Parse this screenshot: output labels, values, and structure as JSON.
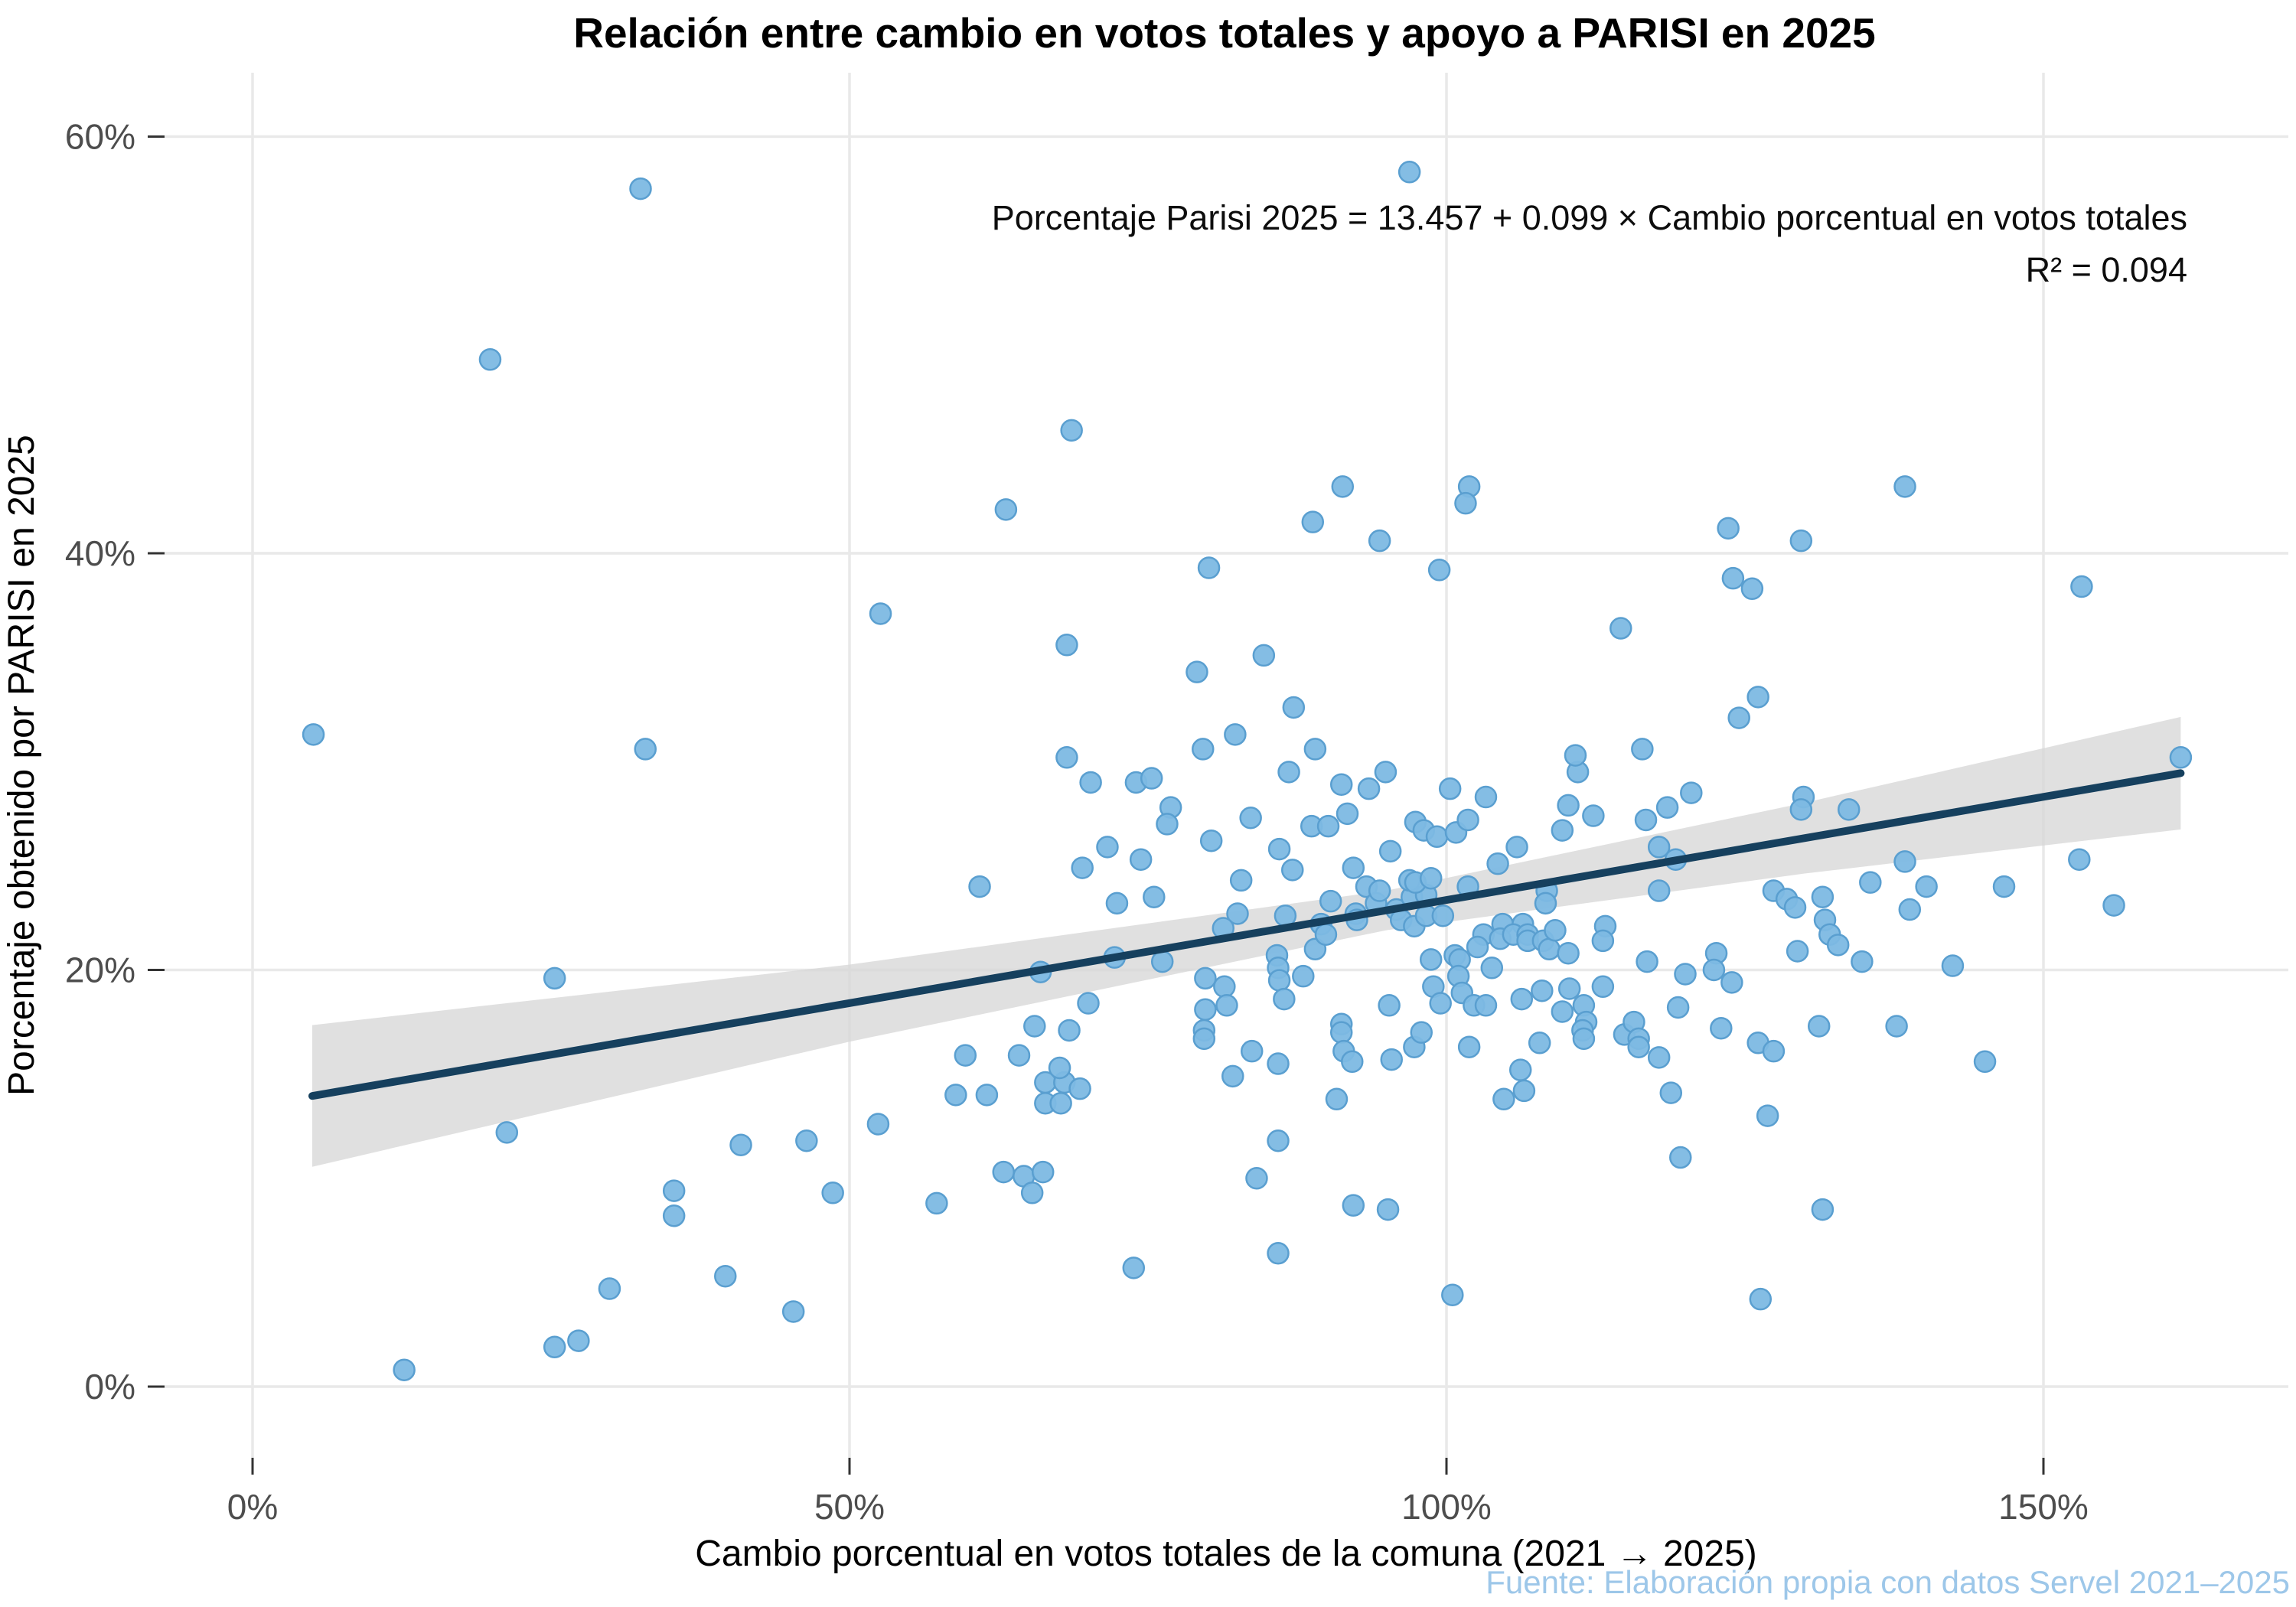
{
  "header": {
    "title": "Relación entre cambio en votos totales y apoyo a PARISI en 2025"
  },
  "annotation": {
    "line1": "Porcentaje Parisi 2025 = 13.457 + 0.099 × Cambio porcentual en votos totales",
    "line2": "R² = 0.094"
  },
  "footer": {
    "text": "Fuente: Elaboración propia con datos Servel 2021–2025"
  },
  "colors": {
    "point_fill": "#7db9e3",
    "point_stroke": "#5a9fd0",
    "regression_line": "#16405e",
    "confidence_band": "#d6d6d6",
    "gridline": "#e9e9e9",
    "tick_mark": "#333333",
    "tick_text": "#4d4d4d",
    "footer_text": "#9dc7e9"
  },
  "chart_data": {
    "type": "scatter",
    "title": "Relación entre cambio en votos totales y apoyo a PARISI en 2025",
    "xlabel": "Cambio porcentual en votos totales de la comuna (2021 → 2025)",
    "ylabel": "Porcentaje obtenido por PARISI en 2025",
    "x_ticks": [
      0,
      50,
      100,
      150
    ],
    "y_ticks": [
      0,
      20,
      40,
      60
    ],
    "x_tick_labels": [
      "0%",
      "50%",
      "100%",
      "150%"
    ],
    "y_tick_labels": [
      "0%",
      "20%",
      "40%",
      "60%"
    ],
    "xlim": [
      -7,
      170
    ],
    "ylim": [
      -3.5,
      63
    ],
    "grid": "on",
    "legend": "none",
    "regression": {
      "intercept": 13.457,
      "slope": 0.099,
      "r2": 0.094,
      "x_start": 5,
      "x_end": 161.5,
      "band_x": [
        5,
        50,
        95,
        130,
        161.5
      ],
      "band_halfwidth": [
        3.4,
        1.85,
        0.95,
        1.7,
        2.7
      ]
    },
    "points": [
      [
        5.1,
        31.3
      ],
      [
        32.5,
        57.5
      ],
      [
        19.9,
        49.3
      ],
      [
        32.9,
        30.6
      ],
      [
        25.3,
        19.6
      ],
      [
        21.3,
        12.2
      ],
      [
        35.3,
        9.4
      ],
      [
        35.3,
        8.2
      ],
      [
        29.9,
        4.7
      ],
      [
        25.3,
        1.9
      ],
      [
        27.3,
        2.2
      ],
      [
        12.7,
        0.8
      ],
      [
        39.6,
        5.3
      ],
      [
        45.3,
        3.6
      ],
      [
        40.9,
        11.6
      ],
      [
        46.4,
        11.8
      ],
      [
        48.6,
        9.3
      ],
      [
        52.4,
        12.6
      ],
      [
        57.3,
        8.8
      ],
      [
        52.6,
        37.1
      ],
      [
        58.9,
        14.0
      ],
      [
        61.5,
        14.0
      ],
      [
        59.7,
        15.9
      ],
      [
        64.2,
        15.9
      ],
      [
        60.9,
        24.0
      ],
      [
        62.9,
        10.3
      ],
      [
        64.6,
        10.1
      ],
      [
        66.2,
        10.3
      ],
      [
        65.3,
        9.3
      ],
      [
        65.5,
        17.3
      ],
      [
        66.0,
        19.9
      ],
      [
        66.4,
        14.6
      ],
      [
        66.4,
        13.6
      ],
      [
        67.7,
        13.6
      ],
      [
        68.0,
        14.6
      ],
      [
        68.4,
        17.1
      ],
      [
        67.6,
        15.3
      ],
      [
        69.3,
        14.3
      ],
      [
        70.0,
        18.4
      ],
      [
        68.6,
        45.9
      ],
      [
        63.1,
        42.1
      ],
      [
        68.2,
        35.6
      ],
      [
        72.2,
        20.6
      ],
      [
        71.6,
        25.9
      ],
      [
        69.5,
        24.9
      ],
      [
        70.2,
        29.0
      ],
      [
        74.0,
        29.0
      ],
      [
        75.3,
        29.2
      ],
      [
        76.9,
        27.8
      ],
      [
        76.6,
        27.0
      ],
      [
        74.4,
        25.3
      ],
      [
        75.5,
        23.5
      ],
      [
        72.4,
        23.2
      ],
      [
        76.2,
        20.4
      ],
      [
        73.8,
        5.7
      ],
      [
        80.1,
        39.3
      ],
      [
        79.1,
        34.3
      ],
      [
        79.6,
        30.6
      ],
      [
        68.2,
        30.2
      ],
      [
        83.6,
        27.3
      ],
      [
        80.3,
        26.2
      ],
      [
        88.7,
        26.9
      ],
      [
        90.1,
        26.9
      ],
      [
        91.2,
        28.9
      ],
      [
        93.5,
        28.7
      ],
      [
        91.7,
        27.5
      ],
      [
        92.2,
        24.9
      ],
      [
        93.3,
        24.0
      ],
      [
        86.0,
        25.8
      ],
      [
        87.1,
        24.8
      ],
      [
        90.3,
        23.3
      ],
      [
        89.5,
        22.2
      ],
      [
        82.8,
        24.3
      ],
      [
        82.5,
        22.7
      ],
      [
        81.3,
        22.0
      ],
      [
        86.5,
        22.6
      ],
      [
        81.4,
        19.2
      ],
      [
        81.6,
        18.3
      ],
      [
        79.8,
        18.1
      ],
      [
        79.8,
        19.6
      ],
      [
        85.8,
        20.7
      ],
      [
        85.9,
        20.1
      ],
      [
        86.0,
        19.5
      ],
      [
        88.0,
        19.7
      ],
      [
        86.4,
        18.6
      ],
      [
        89.0,
        21.0
      ],
      [
        89.9,
        21.7
      ],
      [
        92.4,
        22.7
      ],
      [
        92.5,
        22.4
      ],
      [
        94.1,
        23.2
      ],
      [
        94.4,
        23.8
      ],
      [
        95.8,
        22.9
      ],
      [
        96.2,
        22.4
      ],
      [
        97.1,
        23.5
      ],
      [
        97.3,
        22.1
      ],
      [
        98.3,
        22.6
      ],
      [
        99.7,
        22.6
      ],
      [
        98.3,
        23.6
      ],
      [
        96.9,
        24.3
      ],
      [
        97.4,
        24.2
      ],
      [
        98.7,
        24.4
      ],
      [
        97.4,
        27.1
      ],
      [
        98.1,
        26.7
      ],
      [
        95.3,
        25.7
      ],
      [
        99.2,
        26.4
      ],
      [
        100.8,
        26.6
      ],
      [
        101.8,
        24.0
      ],
      [
        101.8,
        27.2
      ],
      [
        103.3,
        28.3
      ],
      [
        104.3,
        25.1
      ],
      [
        98.7,
        20.5
      ],
      [
        98.9,
        19.2
      ],
      [
        99.5,
        18.4
      ],
      [
        100.7,
        20.7
      ],
      [
        101.1,
        20.5
      ],
      [
        101.0,
        19.7
      ],
      [
        101.3,
        18.9
      ],
      [
        103.1,
        21.7
      ],
      [
        102.6,
        21.1
      ],
      [
        103.8,
        20.1
      ],
      [
        102.3,
        18.3
      ],
      [
        104.7,
        22.2
      ],
      [
        104.5,
        21.5
      ],
      [
        79.7,
        17.1
      ],
      [
        79.7,
        16.7
      ],
      [
        83.7,
        16.1
      ],
      [
        85.9,
        15.5
      ],
      [
        91.2,
        17.4
      ],
      [
        91.2,
        17.0
      ],
      [
        91.4,
        16.1
      ],
      [
        92.1,
        15.6
      ],
      [
        90.8,
        13.8
      ],
      [
        95.4,
        15.7
      ],
      [
        95.2,
        18.3
      ],
      [
        97.3,
        16.3
      ],
      [
        97.9,
        17.0
      ],
      [
        101.9,
        16.3
      ],
      [
        103.3,
        18.3
      ],
      [
        82.1,
        14.9
      ],
      [
        86.8,
        29.5
      ],
      [
        94.9,
        29.5
      ],
      [
        100.3,
        28.7
      ],
      [
        84.1,
        10.0
      ],
      [
        92.2,
        8.7
      ],
      [
        95.1,
        8.5
      ],
      [
        85.9,
        6.4
      ],
      [
        100.5,
        4.4
      ],
      [
        85.9,
        11.8
      ],
      [
        110.2,
        27.9
      ],
      [
        112.3,
        27.4
      ],
      [
        109.7,
        26.7
      ],
      [
        105.9,
        25.9
      ],
      [
        116.7,
        27.2
      ],
      [
        118.5,
        27.8
      ],
      [
        120.5,
        28.5
      ],
      [
        129.9,
        28.3
      ],
      [
        117.8,
        25.9
      ],
      [
        119.2,
        25.3
      ],
      [
        108.4,
        23.8
      ],
      [
        108.3,
        23.2
      ],
      [
        117.8,
        23.8
      ],
      [
        127.4,
        23.8
      ],
      [
        106.4,
        22.2
      ],
      [
        105.6,
        21.7
      ],
      [
        106.8,
        21.7
      ],
      [
        106.8,
        21.4
      ],
      [
        108.1,
        21.4
      ],
      [
        108.6,
        21.0
      ],
      [
        109.1,
        21.9
      ],
      [
        110.2,
        20.8
      ],
      [
        113.3,
        22.1
      ],
      [
        113.1,
        21.4
      ],
      [
        110.3,
        19.1
      ],
      [
        113.1,
        19.2
      ],
      [
        116.8,
        20.4
      ],
      [
        120.0,
        19.8
      ],
      [
        122.6,
        20.8
      ],
      [
        122.4,
        20.0
      ],
      [
        123.9,
        19.4
      ],
      [
        109.7,
        18.0
      ],
      [
        108.0,
        19.0
      ],
      [
        106.3,
        18.6
      ],
      [
        107.8,
        16.5
      ],
      [
        106.2,
        15.2
      ],
      [
        104.8,
        13.8
      ],
      [
        111.5,
        18.3
      ],
      [
        111.7,
        17.5
      ],
      [
        111.4,
        17.1
      ],
      [
        111.5,
        16.7
      ],
      [
        114.9,
        16.9
      ],
      [
        115.7,
        17.5
      ],
      [
        116.1,
        16.7
      ],
      [
        116.1,
        16.3
      ],
      [
        117.8,
        15.8
      ],
      [
        119.4,
        18.2
      ],
      [
        123.0,
        17.2
      ],
      [
        126.1,
        16.5
      ],
      [
        127.4,
        16.1
      ],
      [
        106.5,
        14.2
      ],
      [
        118.8,
        14.1
      ],
      [
        119.6,
        11.0
      ],
      [
        111.0,
        29.5
      ],
      [
        114.6,
        36.4
      ],
      [
        116.4,
        30.6
      ],
      [
        124.5,
        32.1
      ],
      [
        126.1,
        33.1
      ],
      [
        110.8,
        30.3
      ],
      [
        123.6,
        41.2
      ],
      [
        124.0,
        38.8
      ],
      [
        125.6,
        38.3
      ],
      [
        96.9,
        58.3
      ],
      [
        91.3,
        43.2
      ],
      [
        88.8,
        41.5
      ],
      [
        94.4,
        40.6
      ],
      [
        101.9,
        43.2
      ],
      [
        101.6,
        42.4
      ],
      [
        99.4,
        39.2
      ],
      [
        84.7,
        35.1
      ],
      [
        87.2,
        32.6
      ],
      [
        89.0,
        30.6
      ],
      [
        82.3,
        31.3
      ],
      [
        133.7,
        27.7
      ],
      [
        153.0,
        25.3
      ],
      [
        131.5,
        23.5
      ],
      [
        146.7,
        24.0
      ],
      [
        131.7,
        22.4
      ],
      [
        138.8,
        22.9
      ],
      [
        140.2,
        24.0
      ],
      [
        134.8,
        20.4
      ],
      [
        132.1,
        21.7
      ],
      [
        132.8,
        21.2
      ],
      [
        129.4,
        20.9
      ],
      [
        142.4,
        20.2
      ],
      [
        137.7,
        17.3
      ],
      [
        131.2,
        17.3
      ],
      [
        145.1,
        15.6
      ],
      [
        126.9,
        13.0
      ],
      [
        131.5,
        8.5
      ],
      [
        126.3,
        4.2
      ],
      [
        128.5,
        23.4
      ],
      [
        129.2,
        23.0
      ],
      [
        129.7,
        27.7
      ],
      [
        138.4,
        25.2
      ],
      [
        135.5,
        24.2
      ],
      [
        155.9,
        23.1
      ],
      [
        161.5,
        30.2
      ],
      [
        138.4,
        43.2
      ],
      [
        129.7,
        40.6
      ],
      [
        153.2,
        38.4
      ]
    ]
  },
  "axes": {
    "x": {
      "title": "Cambio porcentual en votos totales de la comuna (2021 → 2025)"
    },
    "y": {
      "title": "Porcentaje obtenido por PARISI en 2025"
    }
  }
}
